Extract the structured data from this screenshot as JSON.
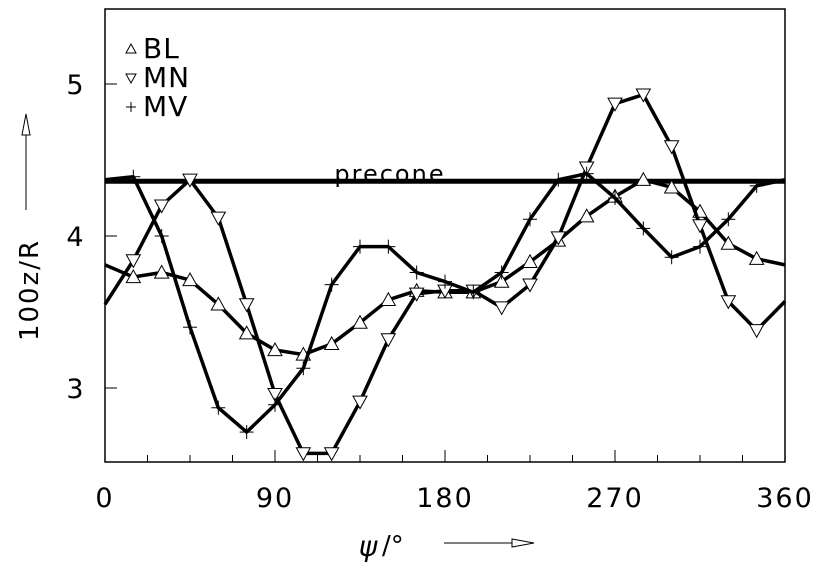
{
  "chart_data": {
    "type": "line",
    "title": "",
    "xlabel": "ψ/°",
    "ylabel": "100z/R",
    "xlim": [
      0,
      360
    ],
    "ylim": [
      2.5,
      5.5
    ],
    "x_ticks": [
      0,
      90,
      180,
      270,
      360
    ],
    "x_tick_labels": [
      "0",
      "90",
      "180",
      "270",
      "360"
    ],
    "y_ticks": [
      3,
      4,
      5
    ],
    "y_tick_labels": [
      "3",
      "4",
      "5"
    ],
    "grid": false,
    "legend_position": "upper-left-inside",
    "x": [
      0,
      15,
      30,
      45,
      60,
      75,
      90,
      105,
      120,
      135,
      150,
      165,
      180,
      195,
      210,
      225,
      240,
      255,
      270,
      285,
      300,
      315,
      330,
      345,
      360
    ],
    "series": [
      {
        "name": "BL",
        "marker": "triangle-up",
        "values": [
          3.81,
          3.73,
          3.76,
          3.71,
          3.55,
          3.36,
          3.25,
          3.22,
          3.29,
          3.43,
          3.58,
          3.64,
          3.63,
          3.63,
          3.7,
          3.83,
          3.97,
          4.13,
          4.26,
          4.37,
          4.32,
          4.16,
          3.95,
          3.85,
          3.81
        ]
      },
      {
        "name": "MN",
        "marker": "triangle-down",
        "values": [
          3.55,
          3.84,
          4.2,
          4.37,
          4.12,
          3.55,
          2.96,
          2.57,
          2.57,
          2.91,
          3.32,
          3.62,
          3.64,
          3.64,
          3.53,
          3.68,
          3.99,
          4.45,
          4.87,
          4.93,
          4.59,
          4.07,
          3.57,
          3.38,
          3.57
        ]
      },
      {
        "name": "MV",
        "marker": "plus",
        "values": [
          4.37,
          4.39,
          4.0,
          3.4,
          2.87,
          2.71,
          2.89,
          3.13,
          3.68,
          3.93,
          3.93,
          3.76,
          3.7,
          3.63,
          3.76,
          4.11,
          4.37,
          4.41,
          4.25,
          4.05,
          3.86,
          3.93,
          4.11,
          4.33,
          4.37
        ]
      }
    ],
    "reference_lines": [
      {
        "label": "precone",
        "y": 4.36,
        "orientation": "horizontal"
      }
    ],
    "annotations": [
      "precone"
    ]
  },
  "legend": {
    "items": [
      {
        "symbol": "△",
        "label": "BL"
      },
      {
        "symbol": "▽",
        "label": "MN"
      },
      {
        "symbol": "+",
        "label": "MV"
      }
    ]
  },
  "axes": {
    "xlabel_symbol": "ψ",
    "xlabel_unit": "/°",
    "ylabel": "100z/R",
    "precone_label": "precone"
  }
}
